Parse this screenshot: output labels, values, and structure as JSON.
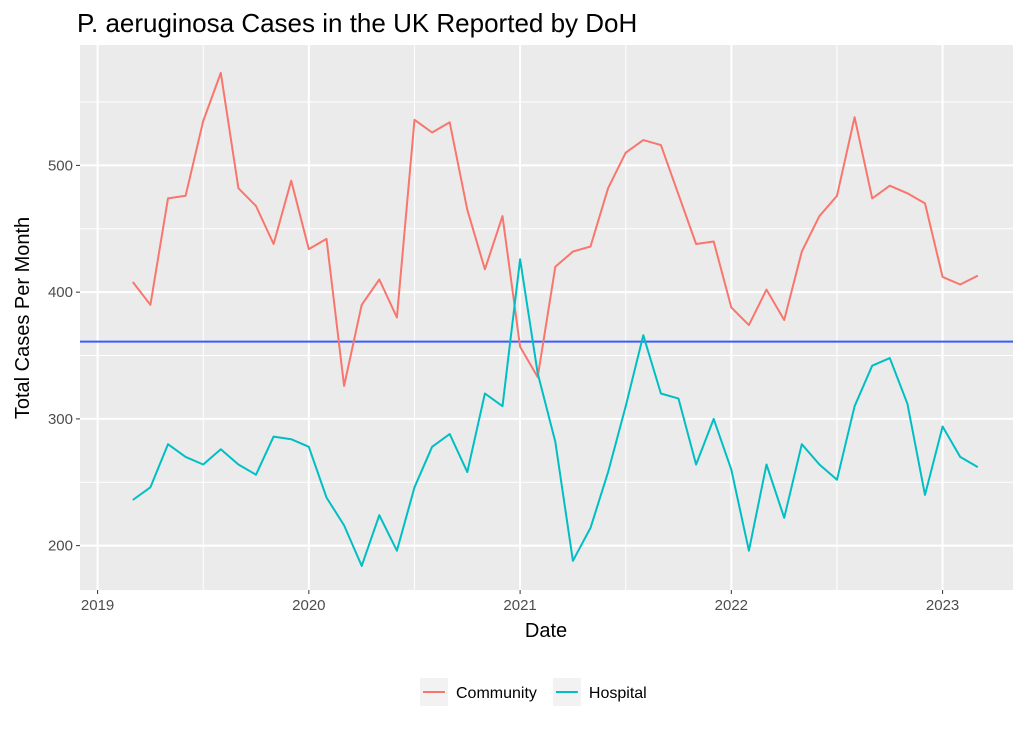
{
  "chart_data": {
    "type": "line",
    "title": "P. aeruginosa Cases in the UK Reported by DoH",
    "xlabel": "Date",
    "ylabel": "Total Cases Per Month",
    "x_ticks": [
      "2019",
      "2020",
      "2021",
      "2022",
      "2023"
    ],
    "y_ticks": [
      200,
      300,
      400,
      500
    ],
    "xlim": [
      "2018-12",
      "2023-05"
    ],
    "ylim": [
      165,
      595
    ],
    "grid": true,
    "legend_position": "bottom",
    "reference_line": {
      "y": 361,
      "color": "#3b5bff"
    },
    "x": [
      "2019-03",
      "2019-04",
      "2019-05",
      "2019-06",
      "2019-07",
      "2019-08",
      "2019-09",
      "2019-10",
      "2019-11",
      "2019-12",
      "2020-01",
      "2020-02",
      "2020-03",
      "2020-04",
      "2020-05",
      "2020-06",
      "2020-07",
      "2020-08",
      "2020-09",
      "2020-10",
      "2020-11",
      "2020-12",
      "2021-01",
      "2021-02",
      "2021-03",
      "2021-04",
      "2021-05",
      "2021-06",
      "2021-07",
      "2021-08",
      "2021-09",
      "2021-10",
      "2021-11",
      "2021-12",
      "2022-01",
      "2022-02",
      "2022-03",
      "2022-04",
      "2022-05",
      "2022-06",
      "2022-07",
      "2022-08",
      "2022-09",
      "2022-10",
      "2022-11",
      "2022-12",
      "2023-01",
      "2023-02",
      "2023-03"
    ],
    "series": [
      {
        "name": "Community",
        "color": "#f8766d",
        "values": [
          408,
          390,
          474,
          476,
          535,
          573,
          482,
          468,
          438,
          488,
          434,
          442,
          326,
          390,
          410,
          380,
          536,
          526,
          534,
          465,
          418,
          460,
          357,
          333,
          420,
          432,
          436,
          482,
          510,
          520,
          516,
          477,
          438,
          440,
          388,
          374,
          402,
          378,
          432,
          460,
          476,
          538,
          474,
          484,
          478,
          470,
          412,
          406,
          413
        ]
      },
      {
        "name": "Hospital",
        "color": "#00bfc4",
        "values": [
          236,
          246,
          280,
          270,
          264,
          276,
          264,
          256,
          286,
          284,
          278,
          238,
          216,
          184,
          224,
          196,
          246,
          278,
          288,
          258,
          320,
          310,
          426,
          336,
          282,
          188,
          214,
          258,
          310,
          366,
          320,
          316,
          264,
          300,
          260,
          196,
          264,
          222,
          280,
          264,
          252,
          310,
          342,
          348,
          312,
          240,
          294,
          270,
          262
        ]
      }
    ]
  }
}
